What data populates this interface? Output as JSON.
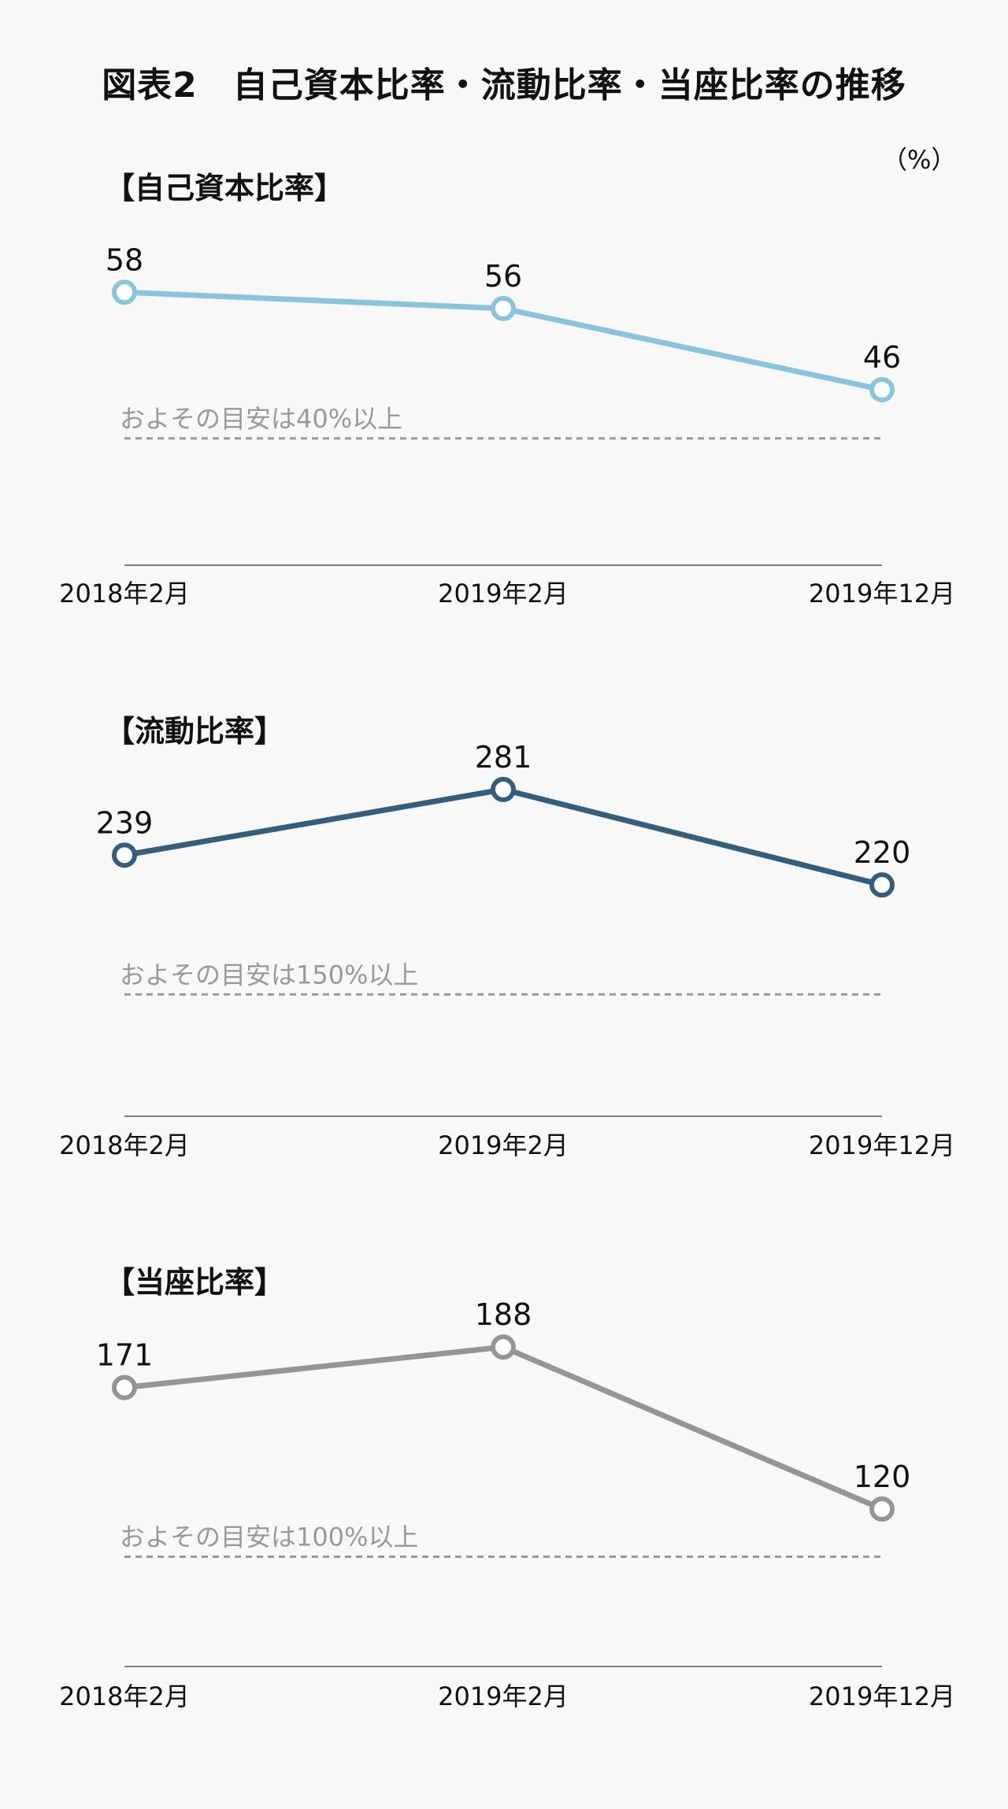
{
  "header": {
    "title": "図表2　自己資本比率・流動比率・当座比率の推移",
    "unit": "（%）"
  },
  "chart_data": [
    {
      "type": "line",
      "title": "【自己資本比率】",
      "categories": [
        "2018年2月",
        "2019年2月",
        "2019年12月"
      ],
      "values": [
        58,
        56,
        46
      ],
      "value_labels": [
        "58",
        "56",
        "46"
      ],
      "line_color": "#8ac4dc",
      "ylim": [
        30,
        62
      ],
      "reference": {
        "value": 40,
        "label": "およその目安は40%以上",
        "color": "#999999"
      },
      "grid": false,
      "legend": "none"
    },
    {
      "type": "line",
      "title": "【流動比率】",
      "categories": [
        "2018年2月",
        "2019年2月",
        "2019年12月"
      ],
      "values": [
        239,
        281,
        220
      ],
      "value_labels": [
        "239",
        "281",
        "220"
      ],
      "line_color": "#345e7b",
      "ylim": [
        129,
        290
      ],
      "reference": {
        "value": 150,
        "label": "およその目安は150%以上",
        "color": "#999999"
      },
      "grid": false,
      "legend": "none"
    },
    {
      "type": "line",
      "title": "【当座比率】",
      "categories": [
        "2018年2月",
        "2019年2月",
        "2019年12月"
      ],
      "values": [
        171,
        188,
        120
      ],
      "value_labels": [
        "171",
        "188",
        "120"
      ],
      "line_color": "#959595",
      "ylim": [
        80,
        195
      ],
      "reference": {
        "value": 100,
        "label": "およその目安は100%以上",
        "color": "#999999"
      },
      "grid": false,
      "legend": "none"
    }
  ]
}
